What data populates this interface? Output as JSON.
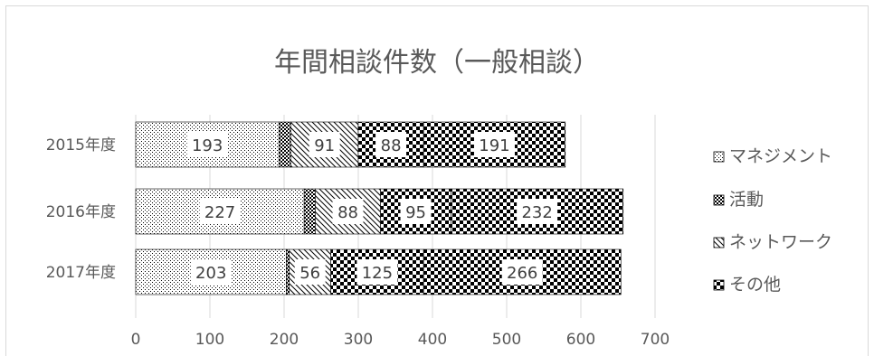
{
  "chart_data": {
    "type": "bar",
    "orientation": "horizontal",
    "stacked": true,
    "title": "年間相談件数（一般相談）",
    "categories": [
      "2015年度",
      "2016年度",
      "2017年度"
    ],
    "series": [
      {
        "name": "マネジメント",
        "values": [
          193,
          227,
          203
        ],
        "pattern": "dots-fine"
      },
      {
        "name": "活動",
        "values": [
          16,
          15,
          4
        ],
        "pattern": "check-fine"
      },
      {
        "name": "ネットワーク",
        "values": [
          91,
          88,
          56
        ],
        "pattern": "diag"
      },
      {
        "name": "その他",
        "values": [
          88,
          95,
          125
        ],
        "pattern": "check-large"
      },
      {
        "name": "",
        "values": [
          191,
          232,
          266
        ],
        "pattern": "check-large"
      }
    ],
    "shown_labels": [
      [
        "193",
        "",
        "91",
        "88",
        "191"
      ],
      [
        "227",
        "",
        "88",
        "95",
        "232"
      ],
      [
        "203",
        "",
        "56",
        "125",
        "266"
      ]
    ],
    "xlim": [
      0,
      700
    ],
    "xticks": [
      0,
      100,
      200,
      300,
      400,
      500,
      600,
      700
    ],
    "grid": true,
    "legend": "right"
  }
}
